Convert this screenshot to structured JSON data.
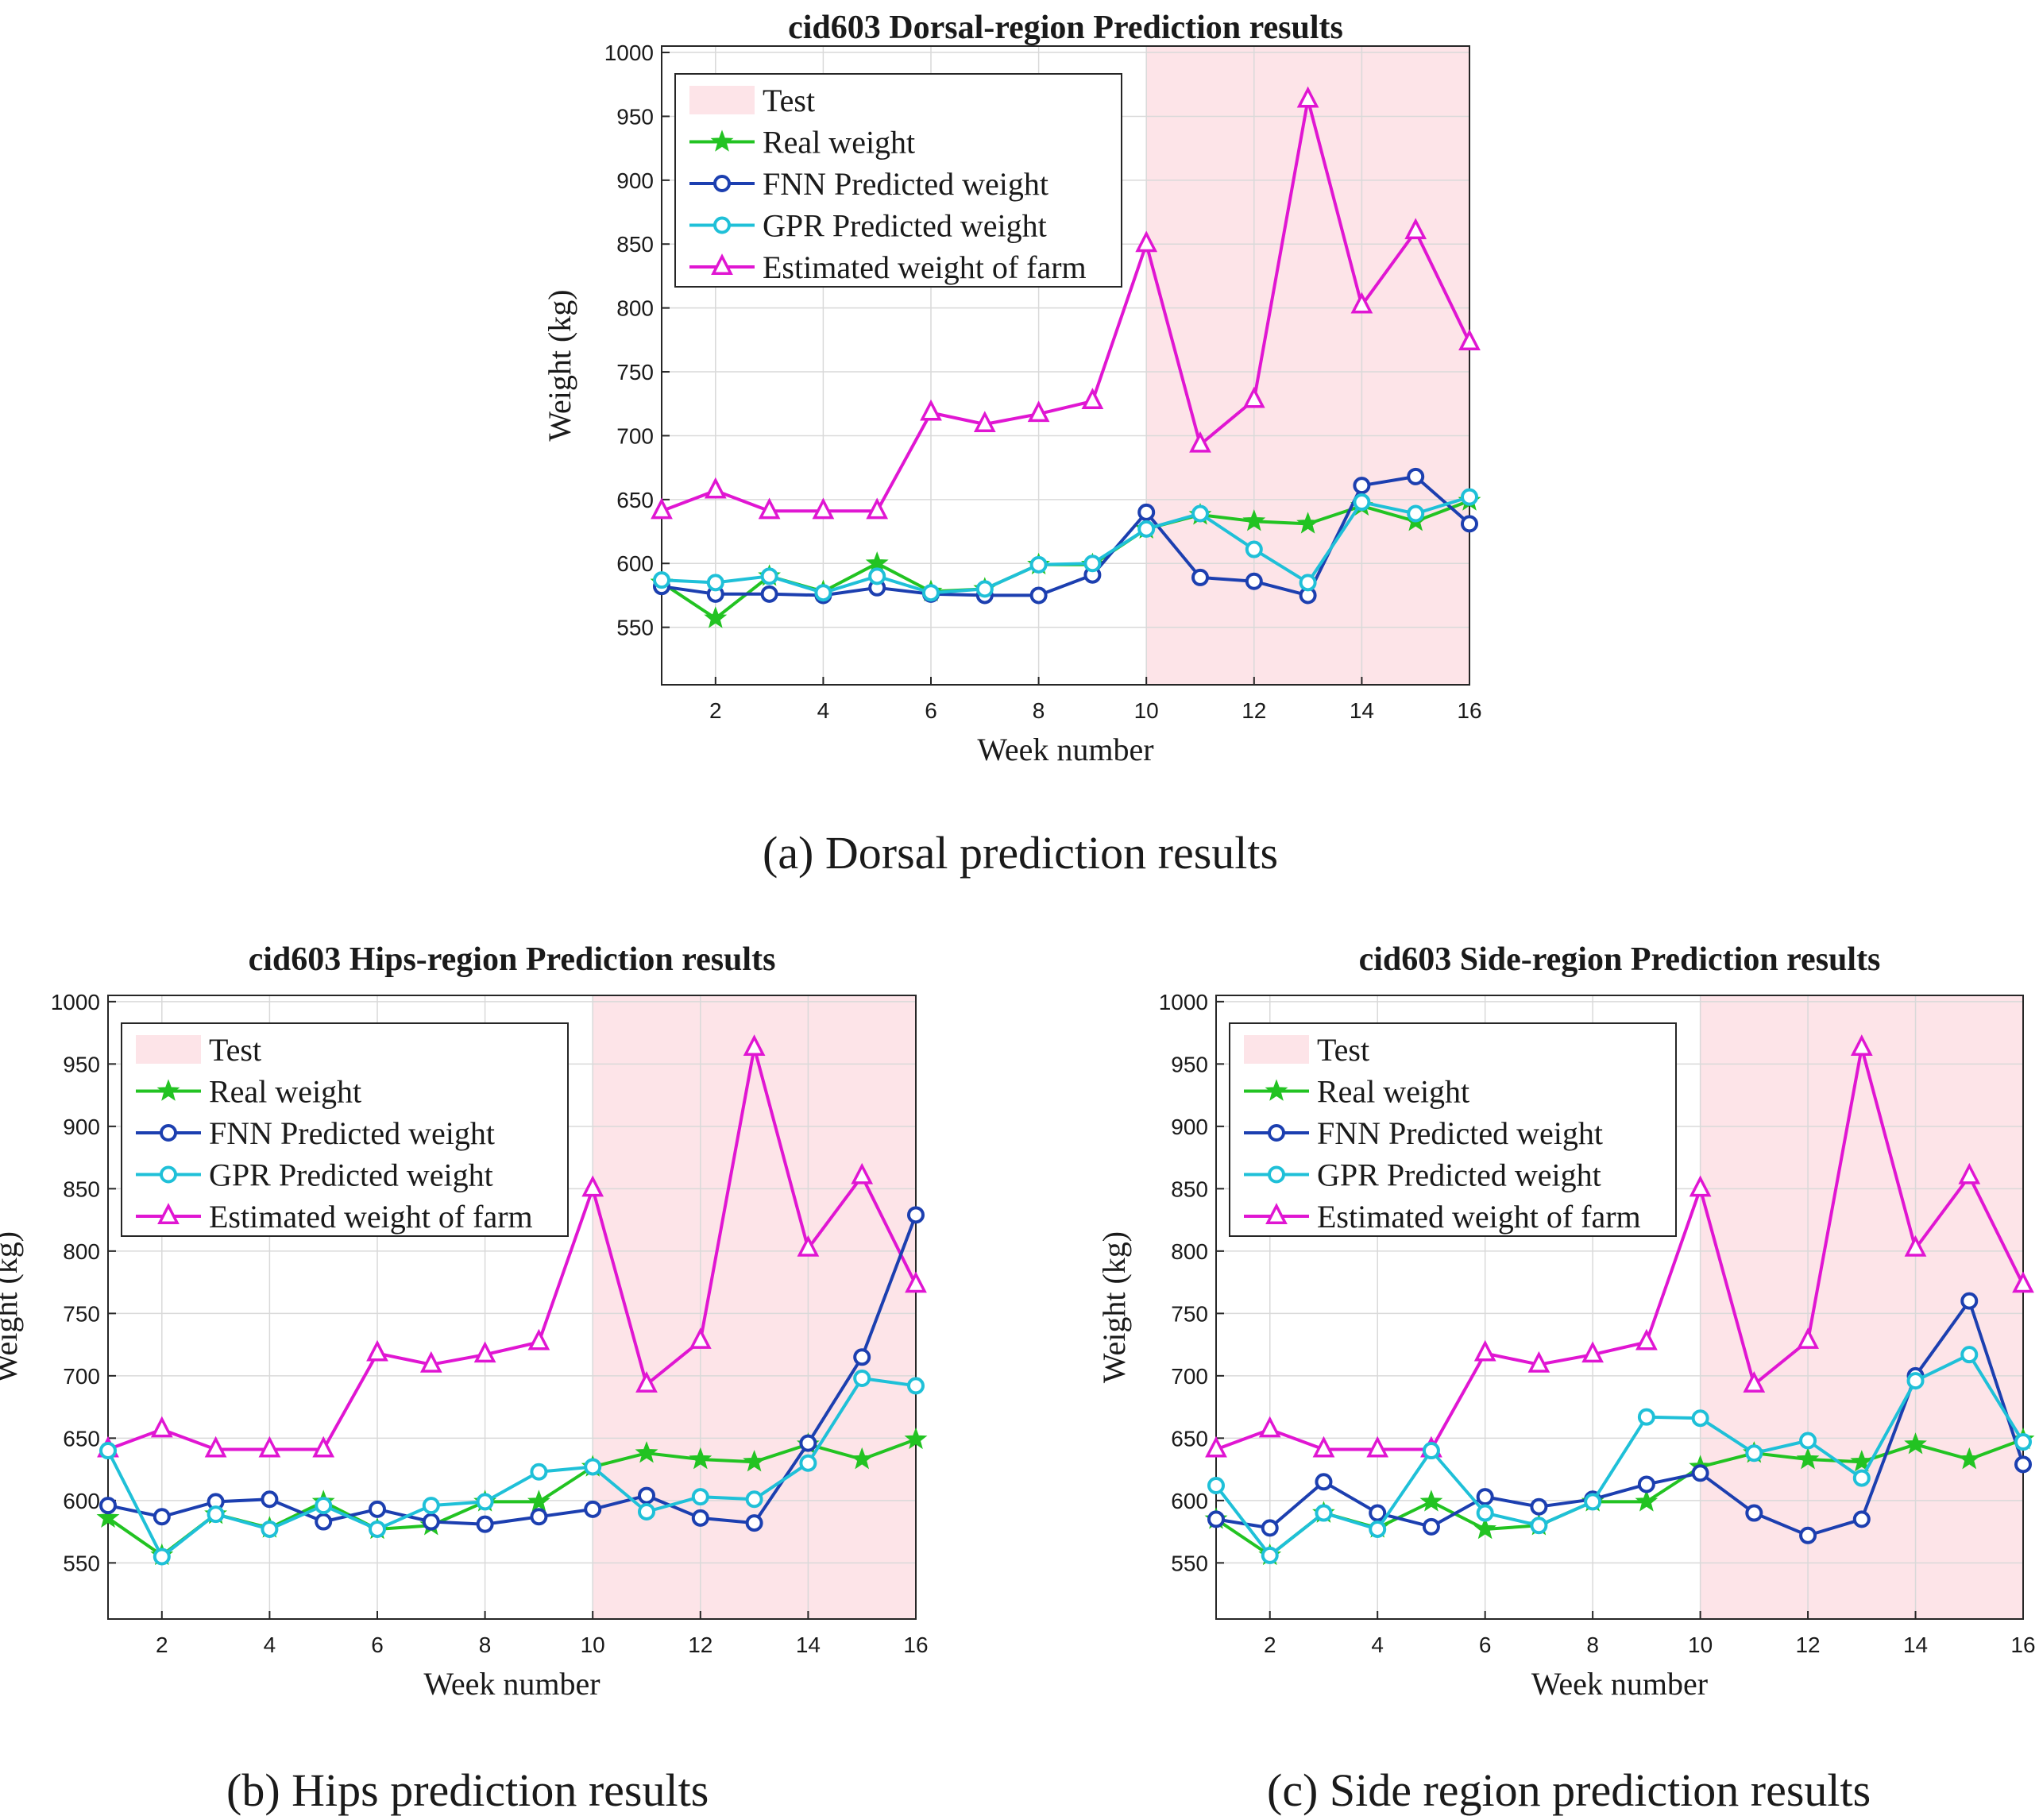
{
  "captions": {
    "a": "(a) Dorsal prediction results",
    "b": "(b) Hips prediction results",
    "c": "(c) Side region prediction results"
  },
  "colors": {
    "test_region": "#fde4e8",
    "real": "#22c322",
    "fnn": "#1c3fb0",
    "gpr": "#1fc0d8",
    "farm": "#e016d2",
    "grid": "#d9d9d9",
    "axis": "#262626"
  },
  "legend_labels": {
    "test": "Test",
    "real": "Real weight",
    "fnn": "FNN Predicted weight",
    "gpr": "GPR Predicted weight",
    "farm": "Estimated weight of farm"
  },
  "chart_data": [
    {
      "id": "dorsal",
      "type": "line",
      "title": "cid603 Dorsal-region Prediction results",
      "xlabel": "Week number",
      "ylabel": "Weight (kg)",
      "xlim": [
        1,
        16
      ],
      "ylim": [
        505,
        1005
      ],
      "xticks": [
        2,
        4,
        6,
        8,
        10,
        12,
        14,
        16
      ],
      "yticks": [
        550,
        600,
        650,
        700,
        750,
        800,
        850,
        900,
        950,
        1000
      ],
      "grid": true,
      "legend_position": "top-left",
      "test_region": [
        10,
        16
      ],
      "x": [
        1,
        2,
        3,
        4,
        5,
        6,
        7,
        8,
        9,
        10,
        11,
        12,
        13,
        14,
        15,
        16
      ],
      "series": [
        {
          "key": "real",
          "name": "Real weight",
          "marker": "star",
          "values": [
            585,
            557,
            590,
            578,
            600,
            578,
            580,
            599,
            599,
            627,
            638,
            633,
            631,
            645,
            633,
            649
          ]
        },
        {
          "key": "fnn",
          "name": "FNN Predicted weight",
          "marker": "circle",
          "values": [
            582,
            576,
            576,
            575,
            581,
            576,
            575,
            575,
            591,
            640,
            589,
            586,
            575,
            661,
            668,
            631
          ]
        },
        {
          "key": "gpr",
          "name": "GPR Predicted weight",
          "marker": "circle",
          "values": [
            587,
            585,
            590,
            577,
            590,
            577,
            580,
            599,
            600,
            627,
            639,
            611,
            585,
            648,
            639,
            652
          ]
        },
        {
          "key": "farm",
          "name": "Estimated weight of farm",
          "marker": "triangle",
          "values": [
            641,
            657,
            641,
            641,
            641,
            718,
            709,
            717,
            727,
            850,
            693,
            728,
            963,
            802,
            860,
            773
          ]
        }
      ]
    },
    {
      "id": "hips",
      "type": "line",
      "title": "cid603 Hips-region Prediction results",
      "xlabel": "Week number",
      "ylabel": "Weight (kg)",
      "xlim": [
        1,
        16
      ],
      "ylim": [
        505,
        1005
      ],
      "xticks": [
        2,
        4,
        6,
        8,
        10,
        12,
        14,
        16
      ],
      "yticks": [
        550,
        600,
        650,
        700,
        750,
        800,
        850,
        900,
        950,
        1000
      ],
      "grid": true,
      "legend_position": "top-left",
      "test_region": [
        10,
        16
      ],
      "x": [
        1,
        2,
        3,
        4,
        5,
        6,
        7,
        8,
        9,
        10,
        11,
        12,
        13,
        14,
        15,
        16
      ],
      "series": [
        {
          "key": "real",
          "name": "Real weight",
          "marker": "star",
          "values": [
            586,
            556,
            589,
            578,
            599,
            577,
            580,
            599,
            599,
            627,
            638,
            633,
            631,
            645,
            633,
            649
          ]
        },
        {
          "key": "fnn",
          "name": "FNN Predicted weight",
          "marker": "circle",
          "values": [
            596,
            587,
            599,
            601,
            583,
            593,
            583,
            581,
            587,
            593,
            604,
            586,
            582,
            646,
            715,
            829
          ]
        },
        {
          "key": "gpr",
          "name": "GPR Predicted weight",
          "marker": "circle",
          "values": [
            640,
            555,
            589,
            577,
            596,
            577,
            596,
            599,
            623,
            627,
            591,
            603,
            601,
            630,
            698,
            692
          ]
        },
        {
          "key": "farm",
          "name": "Estimated weight of farm",
          "marker": "triangle",
          "values": [
            641,
            657,
            641,
            641,
            641,
            718,
            709,
            717,
            727,
            850,
            693,
            728,
            963,
            802,
            860,
            773
          ]
        }
      ]
    },
    {
      "id": "side",
      "type": "line",
      "title": "cid603 Side-region Prediction results",
      "xlabel": "Week number",
      "ylabel": "Weight (kg)",
      "xlim": [
        1,
        16
      ],
      "ylim": [
        505,
        1005
      ],
      "xticks": [
        2,
        4,
        6,
        8,
        10,
        12,
        14,
        16
      ],
      "yticks": [
        550,
        600,
        650,
        700,
        750,
        800,
        850,
        900,
        950,
        1000
      ],
      "grid": true,
      "legend_position": "top-left",
      "test_region": [
        10,
        16
      ],
      "x": [
        1,
        2,
        3,
        4,
        5,
        6,
        7,
        8,
        9,
        10,
        11,
        12,
        13,
        14,
        15,
        16
      ],
      "series": [
        {
          "key": "real",
          "name": "Real weight",
          "marker": "star",
          "values": [
            585,
            556,
            590,
            578,
            599,
            577,
            580,
            599,
            599,
            627,
            638,
            633,
            631,
            645,
            633,
            649
          ]
        },
        {
          "key": "fnn",
          "name": "FNN Predicted weight",
          "marker": "circle",
          "values": [
            585,
            578,
            615,
            590,
            579,
            603,
            595,
            601,
            613,
            622,
            590,
            572,
            585,
            700,
            760,
            629
          ]
        },
        {
          "key": "gpr",
          "name": "GPR Predicted weight",
          "marker": "circle",
          "values": [
            612,
            556,
            590,
            577,
            640,
            590,
            580,
            599,
            667,
            666,
            638,
            648,
            618,
            696,
            717,
            647
          ]
        },
        {
          "key": "farm",
          "name": "Estimated weight of farm",
          "marker": "triangle",
          "values": [
            641,
            657,
            641,
            641,
            641,
            718,
            709,
            717,
            727,
            850,
            693,
            728,
            963,
            802,
            860,
            773
          ]
        }
      ]
    }
  ]
}
